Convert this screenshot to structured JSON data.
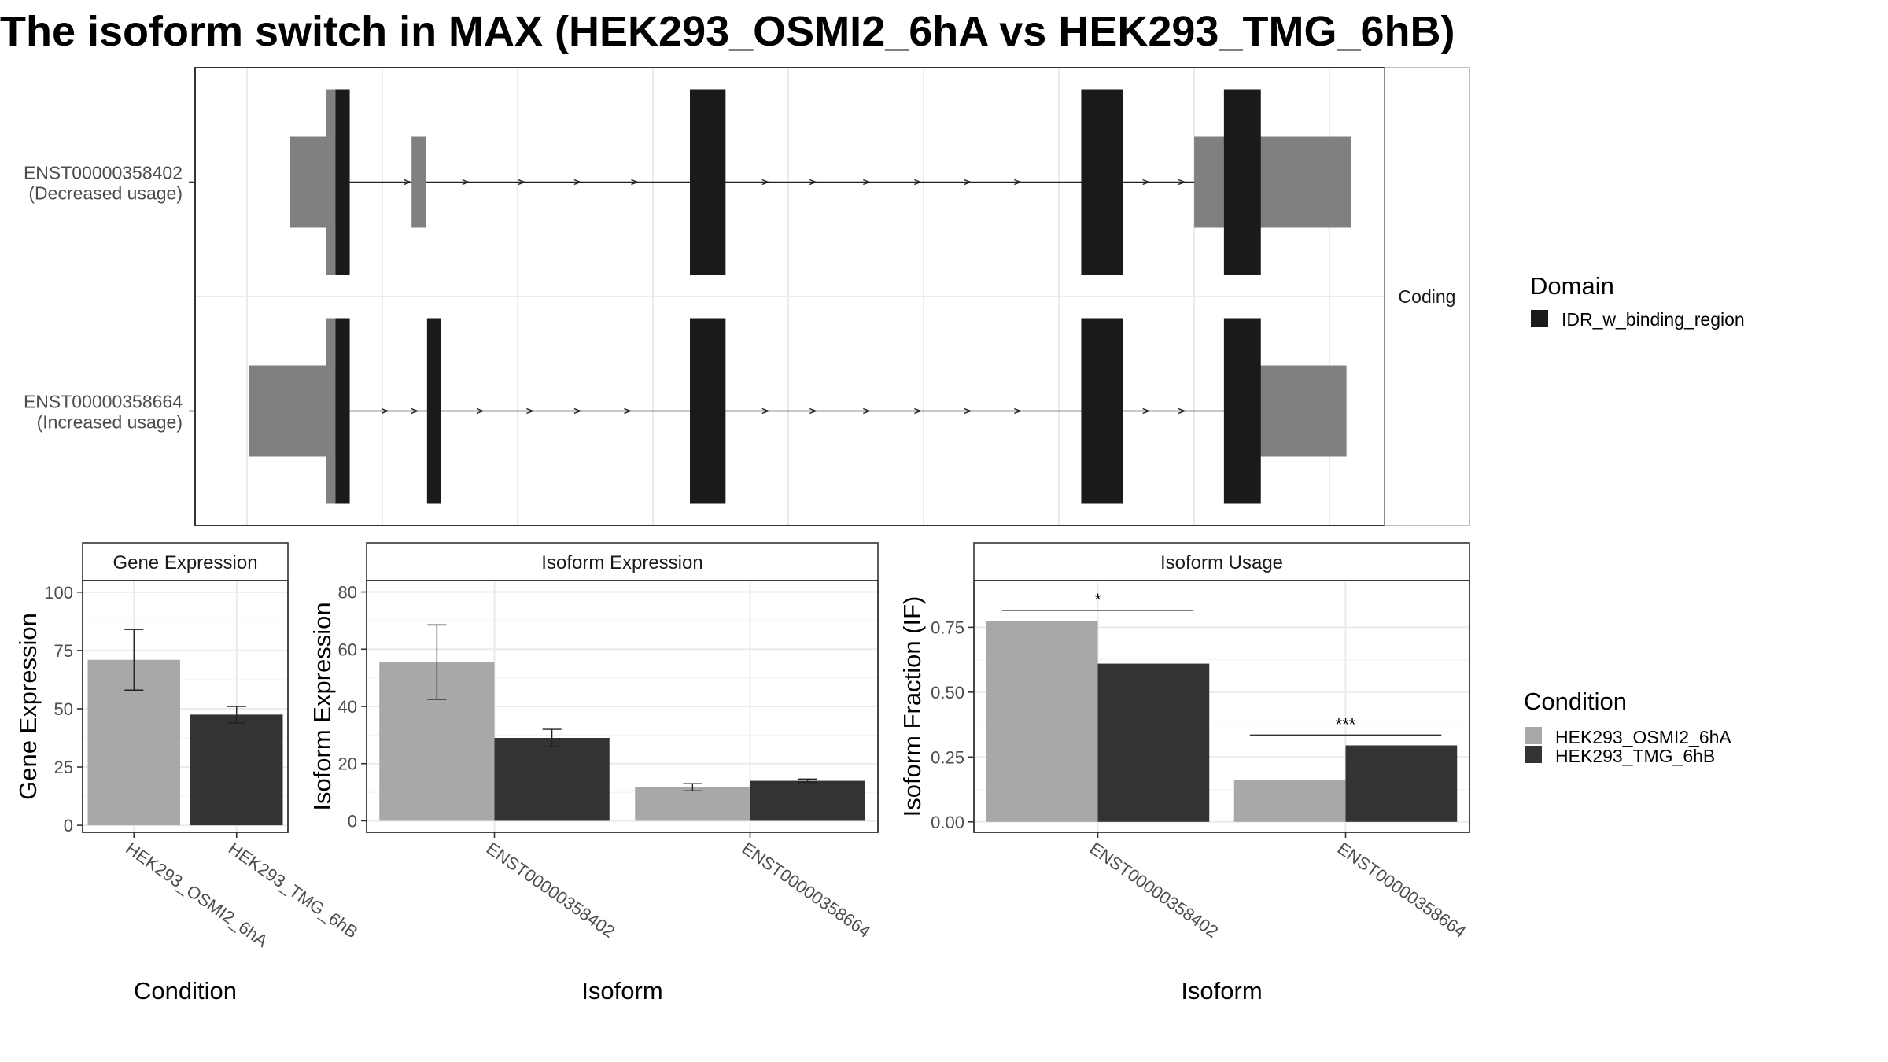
{
  "title": "The isoform switch in MAX (HEK293_OSMI2_6hA vs HEK293_TMG_6hB)",
  "colors": {
    "condition_a": "#a8a8a8",
    "condition_b": "#333333",
    "domain": "#1a1a1a",
    "utr": "#808080",
    "grid": "#ebebeb",
    "strip_bg": "#ffffff",
    "panel_border": "#333333"
  },
  "transcript_panel": {
    "strip_label": "Coding",
    "isoforms": [
      {
        "line1": "ENST00000358402",
        "line2": "(Decreased usage)",
        "utrs": [
          [
            0.08,
            0.118
          ],
          [
            0.182,
            0.194
          ],
          [
            0.84,
            0.87
          ],
          [
            0.87,
            0.972
          ]
        ],
        "exons": [
          [
            0.118,
            0.13
          ],
          [
            0.416,
            0.446
          ],
          [
            0.745,
            0.78
          ],
          [
            0.865,
            0.896
          ]
        ],
        "intron_arrows": [
          0.179,
          0.228,
          0.275,
          0.322,
          0.37,
          0.48,
          0.52,
          0.565,
          0.608,
          0.65,
          0.692,
          0.8,
          0.83
        ]
      },
      {
        "line1": "ENST00000358664",
        "line2": "(Increased usage)",
        "utrs": [
          [
            0.045,
            0.118
          ],
          [
            0.895,
            0.968
          ]
        ],
        "exons": [
          [
            0.118,
            0.13
          ],
          [
            0.195,
            0.207
          ],
          [
            0.416,
            0.446
          ],
          [
            0.745,
            0.78
          ],
          [
            0.865,
            0.896
          ]
        ],
        "intron_arrows": [
          0.16,
          0.185,
          0.24,
          0.282,
          0.322,
          0.364,
          0.48,
          0.52,
          0.565,
          0.608,
          0.65,
          0.692,
          0.8,
          0.83
        ]
      }
    ]
  },
  "legends": {
    "domain": {
      "title": "Domain",
      "items": [
        "IDR_w_binding_region"
      ]
    },
    "condition": {
      "title": "Condition",
      "items": [
        "HEK293_OSMI2_6hA",
        "HEK293_TMG_6hB"
      ]
    }
  },
  "chart_data": [
    {
      "type": "bar",
      "title": "Gene Expression",
      "xlabel": "Condition",
      "ylabel": "Gene Expression",
      "categories": [
        "HEK293_OSMI2_6hA",
        "HEK293_TMG_6hB"
      ],
      "values": [
        71,
        47.5
      ],
      "errors": [
        [
          58,
          84
        ],
        [
          44,
          51
        ]
      ],
      "ylim": [
        -3,
        105
      ],
      "yticks": [
        0,
        25,
        50,
        75,
        100
      ],
      "ytick_labels": [
        "0",
        "25",
        "50",
        "75",
        "100"
      ]
    },
    {
      "type": "bar",
      "title": "Isoform Expression",
      "xlabel": "Isoform",
      "ylabel": "Isoform Expression",
      "categories": [
        "ENST00000358402",
        "ENST00000358664"
      ],
      "series": [
        {
          "name": "HEK293_OSMI2_6hA",
          "values": [
            55.5,
            11.8
          ],
          "errors": [
            [
              42.5,
              68.5
            ],
            [
              10.5,
              13
            ]
          ]
        },
        {
          "name": "HEK293_TMG_6hB",
          "values": [
            29,
            14
          ],
          "errors": [
            [
              26,
              32
            ],
            [
              13.5,
              14.6
            ]
          ]
        }
      ],
      "ylim": [
        -4,
        84
      ],
      "yticks": [
        0,
        20,
        40,
        60,
        80
      ],
      "ytick_labels": [
        "0",
        "20",
        "40",
        "60",
        "80"
      ]
    },
    {
      "type": "bar",
      "title": "Isoform Usage",
      "xlabel": "Isoform",
      "ylabel": "Isoform Fraction (IF)",
      "categories": [
        "ENST00000358402",
        "ENST00000358664"
      ],
      "series": [
        {
          "name": "HEK293_OSMI2_6hA",
          "values": [
            0.775,
            0.16
          ]
        },
        {
          "name": "HEK293_TMG_6hB",
          "values": [
            0.61,
            0.295
          ]
        }
      ],
      "significance": [
        "*",
        "***"
      ],
      "significance_y": [
        0.815,
        0.335
      ],
      "ylim": [
        -0.04,
        0.93
      ],
      "yticks": [
        0,
        0.25,
        0.5,
        0.75
      ],
      "ytick_labels": [
        "0.00",
        "0.25",
        "0.50",
        "0.75"
      ]
    }
  ]
}
